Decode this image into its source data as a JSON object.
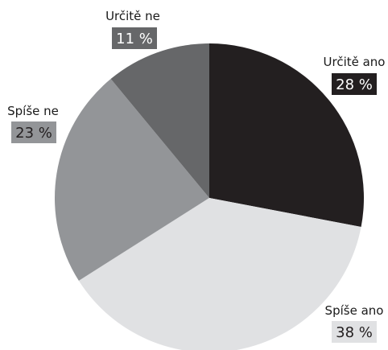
{
  "chart_data": {
    "type": "pie",
    "categories": [
      "Určitě ano",
      "Spíše ano",
      "Spíše ne",
      "Určitě ne"
    ],
    "values": [
      28,
      38,
      23,
      11
    ],
    "value_labels": [
      "28 %",
      "38 %",
      "23 %",
      "11 %"
    ],
    "colors": [
      "#231f20",
      "#e0e1e3",
      "#939598",
      "#666769"
    ],
    "label_text_colors": [
      "#ffffff",
      "#231f20",
      "#231f20",
      "#ffffff"
    ],
    "legend": "none",
    "start": "12 o'clock",
    "direction": "clockwise"
  }
}
